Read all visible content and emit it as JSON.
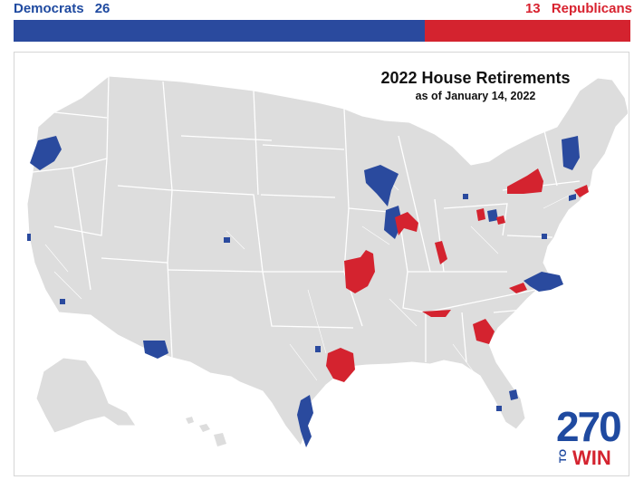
{
  "tally": {
    "dem_label": "Democrats",
    "dem_count": "26",
    "rep_count": "13",
    "rep_label": "Republicans",
    "dem_fraction": 0.6667
  },
  "map": {
    "title": "2022 House Retirements",
    "subtitle": "as of January 14, 2022"
  },
  "logo": {
    "number": "270",
    "to": "TO",
    "win": "WIN"
  },
  "colors": {
    "democrat": "#2a4a9e",
    "republican": "#d4232f",
    "land": "#dddddd",
    "border": "#ffffff"
  }
}
